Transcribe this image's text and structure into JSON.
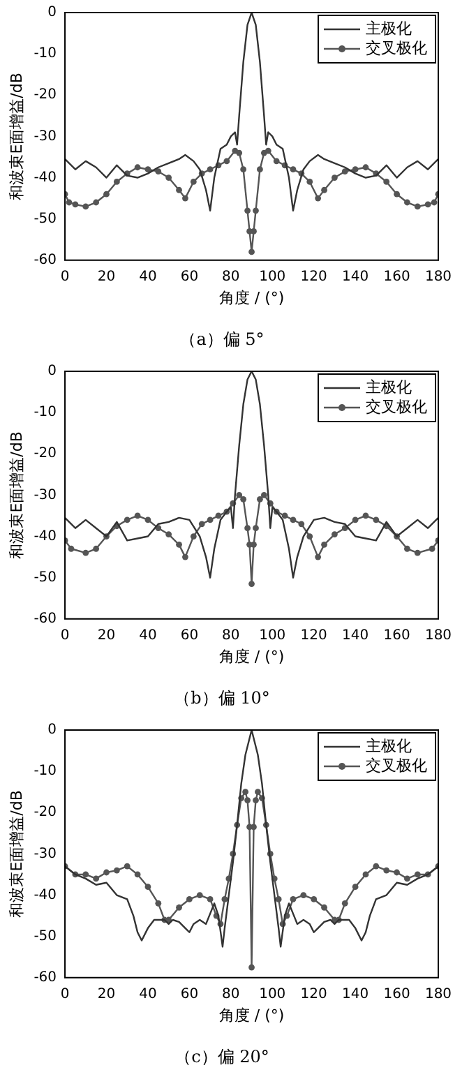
{
  "chart_data": [
    {
      "type": "line",
      "title": "（a）偏 5°",
      "xlabel": "角度 / (°)",
      "ylabel": "和波束E面增益/dB",
      "xlim": [
        0,
        180
      ],
      "xticks": [
        0,
        20,
        40,
        60,
        80,
        100,
        120,
        140,
        160,
        180
      ],
      "ylim": [
        -60,
        0
      ],
      "yticks": [
        -60,
        -50,
        -40,
        -30,
        -20,
        -10,
        0
      ],
      "legend": "top right",
      "series": [
        {
          "name": "主极化",
          "color": "#333333",
          "x": [
            0,
            5,
            10,
            15,
            20,
            25,
            30,
            35,
            40,
            45,
            50,
            55,
            58,
            62,
            65,
            68,
            70,
            72,
            75,
            78,
            80,
            82,
            83,
            84,
            86,
            88,
            90,
            92,
            94,
            96,
            97,
            98,
            100,
            102,
            105,
            108,
            110,
            112,
            115,
            118,
            122,
            125,
            130,
            135,
            140,
            145,
            150,
            155,
            160,
            165,
            170,
            175,
            180
          ],
          "values": [
            -35.5,
            -38,
            -36,
            -37.5,
            -40,
            -37,
            -39.5,
            -40,
            -39,
            -37.5,
            -36.5,
            -35.5,
            -34.5,
            -36,
            -38,
            -43,
            -48,
            -40,
            -33,
            -32,
            -30,
            -29,
            -32,
            -25,
            -12,
            -3,
            0,
            -3,
            -12,
            -25,
            -32,
            -29,
            -30,
            -32,
            -33,
            -40,
            -48,
            -43,
            -38,
            -36,
            -34.5,
            -35.5,
            -36.5,
            -37.5,
            -39,
            -40,
            -39.5,
            -37,
            -40,
            -37.5,
            -36,
            -38,
            -35.5
          ]
        },
        {
          "name": "交叉极化",
          "color": "#555555",
          "marker": "circle",
          "x": [
            0,
            2,
            5,
            10,
            15,
            20,
            25,
            30,
            35,
            40,
            45,
            50,
            55,
            58,
            62,
            66,
            70,
            74,
            78,
            82,
            84,
            86,
            88,
            89,
            90,
            91,
            92,
            94,
            96,
            98,
            102,
            106,
            110,
            114,
            118,
            122,
            125,
            130,
            135,
            140,
            145,
            150,
            155,
            160,
            165,
            170,
            175,
            178,
            180
          ],
          "values": [
            -44,
            -46,
            -46.5,
            -47,
            -46,
            -44,
            -41,
            -39,
            -37.5,
            -38,
            -38.5,
            -40,
            -43,
            -45,
            -41,
            -39,
            -38,
            -37,
            -36,
            -33.5,
            -34,
            -38,
            -48,
            -53,
            -58,
            -53,
            -48,
            -38,
            -34,
            -33.5,
            -36,
            -37,
            -38,
            -39,
            -41,
            -45,
            -43,
            -40,
            -38.5,
            -38,
            -37.5,
            -39,
            -41,
            -44,
            -46,
            -47,
            -46.5,
            -46,
            -44
          ]
        }
      ]
    },
    {
      "type": "line",
      "title": "（b）偏 10°",
      "xlabel": "角度 / (°)",
      "ylabel": "和波束E面增益/dB",
      "xlim": [
        0,
        180
      ],
      "xticks": [
        0,
        20,
        40,
        60,
        80,
        100,
        120,
        140,
        160,
        180
      ],
      "ylim": [
        -60,
        0
      ],
      "yticks": [
        -60,
        -50,
        -40,
        -30,
        -20,
        -10,
        0
      ],
      "legend": "top right",
      "series": [
        {
          "name": "主极化",
          "color": "#333333",
          "x": [
            0,
            5,
            10,
            15,
            20,
            25,
            30,
            35,
            40,
            45,
            50,
            55,
            60,
            65,
            68,
            70,
            72,
            75,
            78,
            80,
            81,
            82,
            84,
            86,
            88,
            90,
            92,
            94,
            96,
            98,
            99,
            100,
            102,
            105,
            108,
            110,
            112,
            115,
            120,
            125,
            130,
            135,
            140,
            145,
            150,
            155,
            160,
            165,
            170,
            175,
            180
          ],
          "values": [
            -35.5,
            -38,
            -36,
            -38,
            -40,
            -36.5,
            -41,
            -40.5,
            -40,
            -37,
            -36.5,
            -35.5,
            -36,
            -40,
            -45,
            -50,
            -43,
            -36,
            -34,
            -33,
            -38,
            -30,
            -18,
            -8,
            -2,
            0,
            -2,
            -8,
            -18,
            -30,
            -38,
            -33,
            -34,
            -36,
            -43,
            -50,
            -45,
            -40,
            -36,
            -35.5,
            -36.5,
            -37,
            -40,
            -40.5,
            -41,
            -36.5,
            -40,
            -38,
            -36,
            -38,
            -35.5
          ]
        },
        {
          "name": "交叉极化",
          "color": "#555555",
          "marker": "circle",
          "x": [
            0,
            3,
            10,
            15,
            20,
            25,
            30,
            35,
            40,
            45,
            50,
            55,
            58,
            62,
            66,
            70,
            74,
            78,
            81,
            84,
            86,
            88,
            89,
            90,
            91,
            92,
            94,
            96,
            99,
            102,
            106,
            110,
            114,
            118,
            122,
            125,
            130,
            135,
            140,
            145,
            150,
            155,
            160,
            165,
            170,
            177,
            180
          ],
          "values": [
            -41,
            -43,
            -44,
            -43,
            -40,
            -37.5,
            -36,
            -35,
            -36,
            -38,
            -39.5,
            -42,
            -45,
            -40,
            -37,
            -36,
            -35,
            -34,
            -32,
            -30,
            -31,
            -38,
            -42,
            -51.5,
            -42,
            -38,
            -31,
            -30,
            -32,
            -34,
            -35,
            -36,
            -37,
            -40,
            -45,
            -42,
            -39.5,
            -38,
            -36,
            -35,
            -36,
            -37.5,
            -40,
            -43,
            -44,
            -43,
            -41
          ]
        }
      ]
    },
    {
      "type": "line",
      "title": "（c）偏 20°",
      "xlabel": "角度 / (°)",
      "ylabel": "和波束E面增益/dB",
      "xlim": [
        0,
        180
      ],
      "xticks": [
        0,
        20,
        40,
        60,
        80,
        100,
        120,
        140,
        160,
        180
      ],
      "ylim": [
        -60,
        0
      ],
      "yticks": [
        -60,
        -50,
        -40,
        -30,
        -20,
        -10,
        0
      ],
      "legend": "top right",
      "series": [
        {
          "name": "主极化",
          "color": "#333333",
          "x": [
            0,
            5,
            10,
            15,
            20,
            25,
            30,
            33,
            35,
            37,
            40,
            43,
            48,
            50,
            52,
            55,
            58,
            60,
            62,
            65,
            68,
            72,
            74,
            76,
            77,
            79,
            81,
            83,
            85,
            87,
            90,
            93,
            95,
            97,
            99,
            101,
            103,
            104,
            106,
            108,
            112,
            115,
            118,
            120,
            122,
            125,
            128,
            130,
            132,
            137,
            140,
            143,
            145,
            147,
            150,
            155,
            160,
            165,
            170,
            175,
            180
          ],
          "values": [
            -33,
            -35,
            -36,
            -37.5,
            -37,
            -40,
            -41,
            -45,
            -49,
            -51,
            -48,
            -46,
            -46,
            -47,
            -46,
            -46.5,
            -48,
            -49,
            -47,
            -46,
            -47,
            -42,
            -45,
            -52.5,
            -48,
            -40,
            -32,
            -23,
            -13,
            -6,
            0,
            -6,
            -13,
            -23,
            -32,
            -40,
            -48,
            -52.5,
            -45,
            -42,
            -47,
            -46,
            -47,
            -49,
            -48,
            -46.5,
            -46,
            -47,
            -46,
            -46,
            -48,
            -51,
            -49,
            -45,
            -41,
            -40,
            -37,
            -37.5,
            -36,
            -35,
            -33
          ]
        },
        {
          "name": "交叉极化",
          "color": "#555555",
          "marker": "circle",
          "x": [
            0,
            5,
            10,
            15,
            20,
            25,
            30,
            35,
            40,
            45,
            48,
            50,
            55,
            60,
            65,
            70,
            73,
            75,
            77,
            79,
            81,
            83,
            85,
            87,
            88,
            89,
            90,
            91,
            92,
            93,
            95,
            97,
            99,
            101,
            103,
            105,
            107,
            110,
            115,
            120,
            125,
            130,
            132,
            135,
            140,
            145,
            150,
            155,
            160,
            165,
            170,
            175,
            180
          ],
          "values": [
            -33,
            -35,
            -35,
            -36,
            -34.5,
            -34,
            -33,
            -35,
            -38,
            -42,
            -46,
            -46,
            -43,
            -41,
            -40,
            -41,
            -45,
            -47,
            -41,
            -36,
            -30,
            -23,
            -16.5,
            -15,
            -17,
            -23.5,
            -57.5,
            -23.5,
            -17,
            -15,
            -16.5,
            -23,
            -30,
            -36,
            -41,
            -47,
            -45,
            -41,
            -40,
            -41,
            -43,
            -46,
            -46,
            -42,
            -38,
            -35,
            -33,
            -34,
            -34.5,
            -36,
            -35,
            -35,
            -33
          ]
        }
      ]
    }
  ]
}
